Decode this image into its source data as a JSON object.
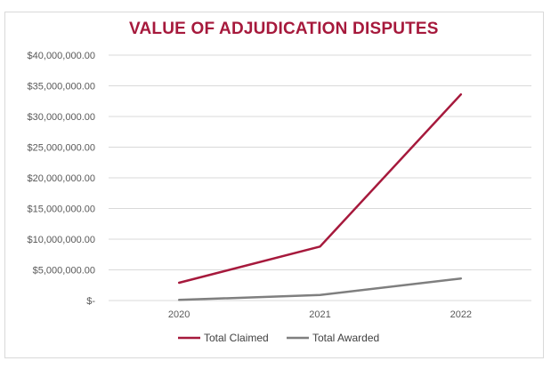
{
  "chart_data": {
    "type": "line",
    "title": "VALUE OF ADJUDICATION DISPUTES",
    "categories": [
      "2020",
      "2021",
      "2022"
    ],
    "y_tick_labels": [
      "$-",
      "$5,000,000.00",
      "$10,000,000.00",
      "$15,000,000.00",
      "$20,000,000.00",
      "$25,000,000.00",
      "$30,000,000.00",
      "$35,000,000.00",
      "$40,000,000.00"
    ],
    "y_ticks": [
      0,
      5000000,
      10000000,
      15000000,
      20000000,
      25000000,
      30000000,
      35000000,
      40000000
    ],
    "ylim": [
      0,
      40000000
    ],
    "grid": true,
    "legend_position": "bottom",
    "series": [
      {
        "name": "Total Claimed",
        "color": "#a6193c",
        "values": [
          2900000,
          8800000,
          33600000
        ]
      },
      {
        "name": "Total Awarded",
        "color": "#7f7f7f",
        "values": [
          100000,
          900000,
          3600000
        ]
      }
    ]
  }
}
